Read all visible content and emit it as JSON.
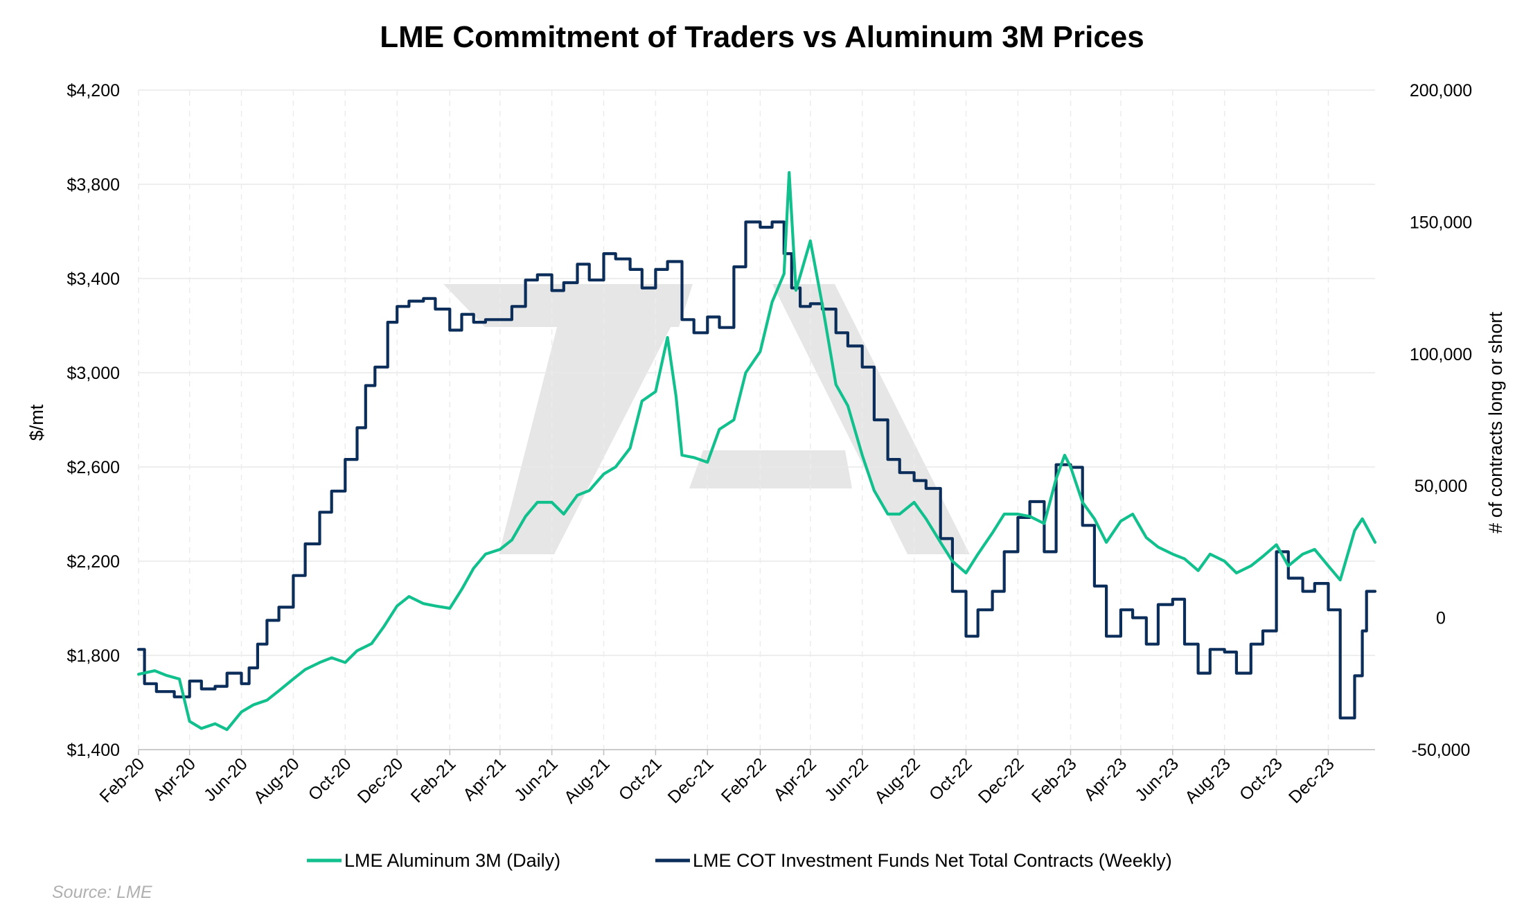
{
  "chart_data": {
    "type": "line",
    "title": "LME Commitment of Traders vs Aluminum 3M Prices",
    "ylabel_left": "$/mt",
    "ylabel_right": "# of contracts long or short",
    "source": "Source: LME",
    "y_left": {
      "min": 1400,
      "max": 4200,
      "ticks": [
        1400,
        1800,
        2200,
        2600,
        3000,
        3400,
        3800,
        4200
      ],
      "tick_labels": [
        "$1,400",
        "$1,800",
        "$2,200",
        "$2,600",
        "$3,000",
        "$3,400",
        "$3,800",
        "$4,200"
      ]
    },
    "y_right": {
      "min": -50000,
      "max": 200000,
      "ticks": [
        -50000,
        0,
        50000,
        100000,
        150000,
        200000
      ],
      "tick_labels": [
        "-50,000",
        "0",
        "50,000",
        "100,000",
        "150,000",
        "200,000"
      ]
    },
    "x_axis": {
      "range": [
        "2020-02-01",
        "2024-01-25"
      ],
      "ticks": [
        "2020-02-01",
        "2020-04-01",
        "2020-06-01",
        "2020-08-01",
        "2020-10-01",
        "2020-12-01",
        "2021-02-01",
        "2021-04-01",
        "2021-06-01",
        "2021-08-01",
        "2021-10-01",
        "2021-12-01",
        "2022-02-01",
        "2022-04-01",
        "2022-06-01",
        "2022-08-01",
        "2022-10-01",
        "2022-12-01",
        "2023-02-01",
        "2023-04-01",
        "2023-06-01",
        "2023-08-01",
        "2023-10-01",
        "2023-12-01"
      ],
      "tick_labels": [
        "Feb-20",
        "Apr-20",
        "Jun-20",
        "Aug-20",
        "Oct-20",
        "Dec-20",
        "Feb-21",
        "Apr-21",
        "Jun-21",
        "Aug-21",
        "Oct-21",
        "Dec-21",
        "Feb-22",
        "Apr-22",
        "Jun-22",
        "Aug-22",
        "Oct-22",
        "Dec-22",
        "Feb-23",
        "Apr-23",
        "Jun-23",
        "Aug-23",
        "Oct-23",
        "Dec-23"
      ]
    },
    "grid": true,
    "legend_position": "bottom",
    "series": [
      {
        "name": "LME Aluminum 3M (Daily)",
        "axis": "left",
        "color": "#12c08e",
        "points": [
          [
            "2020-02-01",
            1720
          ],
          [
            "2020-02-20",
            1735
          ],
          [
            "2020-03-05",
            1715
          ],
          [
            "2020-03-20",
            1700
          ],
          [
            "2020-04-01",
            1520
          ],
          [
            "2020-04-15",
            1490
          ],
          [
            "2020-05-01",
            1510
          ],
          [
            "2020-05-15",
            1485
          ],
          [
            "2020-06-01",
            1560
          ],
          [
            "2020-06-15",
            1590
          ],
          [
            "2020-07-01",
            1610
          ],
          [
            "2020-07-15",
            1650
          ],
          [
            "2020-08-01",
            1700
          ],
          [
            "2020-08-15",
            1740
          ],
          [
            "2020-09-01",
            1770
          ],
          [
            "2020-09-15",
            1790
          ],
          [
            "2020-10-01",
            1770
          ],
          [
            "2020-10-15",
            1820
          ],
          [
            "2020-11-01",
            1850
          ],
          [
            "2020-11-15",
            1920
          ],
          [
            "2020-12-01",
            2010
          ],
          [
            "2020-12-15",
            2050
          ],
          [
            "2021-01-01",
            2020
          ],
          [
            "2021-01-15",
            2010
          ],
          [
            "2021-02-01",
            2000
          ],
          [
            "2021-02-15",
            2080
          ],
          [
            "2021-03-01",
            2170
          ],
          [
            "2021-03-15",
            2230
          ],
          [
            "2021-04-01",
            2250
          ],
          [
            "2021-04-15",
            2290
          ],
          [
            "2021-05-01",
            2390
          ],
          [
            "2021-05-15",
            2450
          ],
          [
            "2021-06-01",
            2450
          ],
          [
            "2021-06-15",
            2400
          ],
          [
            "2021-07-01",
            2480
          ],
          [
            "2021-07-15",
            2500
          ],
          [
            "2021-08-01",
            2570
          ],
          [
            "2021-08-15",
            2600
          ],
          [
            "2021-09-01",
            2680
          ],
          [
            "2021-09-15",
            2880
          ],
          [
            "2021-10-01",
            2920
          ],
          [
            "2021-10-15",
            3150
          ],
          [
            "2021-10-25",
            2900
          ],
          [
            "2021-11-01",
            2650
          ],
          [
            "2021-11-15",
            2640
          ],
          [
            "2021-12-01",
            2620
          ],
          [
            "2021-12-15",
            2760
          ],
          [
            "2022-01-01",
            2800
          ],
          [
            "2022-01-15",
            3000
          ],
          [
            "2022-02-01",
            3090
          ],
          [
            "2022-02-15",
            3300
          ],
          [
            "2022-03-01",
            3420
          ],
          [
            "2022-03-07",
            3850
          ],
          [
            "2022-03-15",
            3350
          ],
          [
            "2022-04-01",
            3560
          ],
          [
            "2022-04-15",
            3290
          ],
          [
            "2022-05-01",
            2950
          ],
          [
            "2022-05-15",
            2860
          ],
          [
            "2022-06-01",
            2650
          ],
          [
            "2022-06-15",
            2500
          ],
          [
            "2022-07-01",
            2400
          ],
          [
            "2022-07-15",
            2400
          ],
          [
            "2022-08-01",
            2450
          ],
          [
            "2022-08-15",
            2380
          ],
          [
            "2022-09-01",
            2280
          ],
          [
            "2022-09-15",
            2200
          ],
          [
            "2022-10-01",
            2150
          ],
          [
            "2022-10-15",
            2230
          ],
          [
            "2022-11-01",
            2320
          ],
          [
            "2022-11-15",
            2400
          ],
          [
            "2022-12-01",
            2400
          ],
          [
            "2022-12-15",
            2390
          ],
          [
            "2023-01-01",
            2360
          ],
          [
            "2023-01-15",
            2550
          ],
          [
            "2023-01-25",
            2650
          ],
          [
            "2023-02-01",
            2600
          ],
          [
            "2023-02-15",
            2450
          ],
          [
            "2023-03-01",
            2380
          ],
          [
            "2023-03-15",
            2280
          ],
          [
            "2023-04-01",
            2370
          ],
          [
            "2023-04-15",
            2400
          ],
          [
            "2023-05-01",
            2300
          ],
          [
            "2023-05-15",
            2260
          ],
          [
            "2023-06-01",
            2230
          ],
          [
            "2023-06-15",
            2210
          ],
          [
            "2023-07-01",
            2160
          ],
          [
            "2023-07-15",
            2230
          ],
          [
            "2023-08-01",
            2200
          ],
          [
            "2023-08-15",
            2150
          ],
          [
            "2023-09-01",
            2180
          ],
          [
            "2023-09-15",
            2220
          ],
          [
            "2023-10-01",
            2270
          ],
          [
            "2023-10-15",
            2180
          ],
          [
            "2023-11-01",
            2230
          ],
          [
            "2023-11-15",
            2250
          ],
          [
            "2023-12-01",
            2180
          ],
          [
            "2023-12-15",
            2120
          ],
          [
            "2024-01-01",
            2330
          ],
          [
            "2024-01-10",
            2380
          ],
          [
            "2024-01-25",
            2280
          ]
        ]
      },
      {
        "name": "LME COT Investment Funds Net Total Contracts (Weekly)",
        "axis": "right",
        "color": "#0b2d5a",
        "step": true,
        "points": [
          [
            "2020-02-01",
            -12000
          ],
          [
            "2020-02-08",
            -25000
          ],
          [
            "2020-02-22",
            -28000
          ],
          [
            "2020-03-14",
            -30000
          ],
          [
            "2020-04-01",
            -24000
          ],
          [
            "2020-04-15",
            -27000
          ],
          [
            "2020-05-01",
            -26000
          ],
          [
            "2020-05-15",
            -21000
          ],
          [
            "2020-06-01",
            -25000
          ],
          [
            "2020-06-10",
            -19000
          ],
          [
            "2020-06-20",
            -10000
          ],
          [
            "2020-07-01",
            -1000
          ],
          [
            "2020-07-15",
            4000
          ],
          [
            "2020-08-01",
            16000
          ],
          [
            "2020-08-15",
            28000
          ],
          [
            "2020-09-01",
            40000
          ],
          [
            "2020-09-15",
            48000
          ],
          [
            "2020-10-01",
            60000
          ],
          [
            "2020-10-15",
            72000
          ],
          [
            "2020-10-25",
            88000
          ],
          [
            "2020-11-05",
            95000
          ],
          [
            "2020-11-20",
            112000
          ],
          [
            "2020-12-01",
            118000
          ],
          [
            "2020-12-15",
            120000
          ],
          [
            "2021-01-01",
            121000
          ],
          [
            "2021-01-15",
            117000
          ],
          [
            "2021-02-01",
            109000
          ],
          [
            "2021-02-15",
            115000
          ],
          [
            "2021-03-01",
            112000
          ],
          [
            "2021-03-15",
            113000
          ],
          [
            "2021-04-01",
            113000
          ],
          [
            "2021-04-15",
            118000
          ],
          [
            "2021-05-01",
            128000
          ],
          [
            "2021-05-15",
            130000
          ],
          [
            "2021-06-01",
            124000
          ],
          [
            "2021-06-15",
            127000
          ],
          [
            "2021-07-01",
            134000
          ],
          [
            "2021-07-15",
            128000
          ],
          [
            "2021-08-01",
            138000
          ],
          [
            "2021-08-15",
            136000
          ],
          [
            "2021-09-01",
            132000
          ],
          [
            "2021-09-15",
            125000
          ],
          [
            "2021-10-01",
            132000
          ],
          [
            "2021-10-15",
            135000
          ],
          [
            "2021-11-01",
            113000
          ],
          [
            "2021-11-15",
            108000
          ],
          [
            "2021-12-01",
            114000
          ],
          [
            "2021-12-15",
            110000
          ],
          [
            "2022-01-01",
            133000
          ],
          [
            "2022-01-15",
            150000
          ],
          [
            "2022-02-01",
            148000
          ],
          [
            "2022-02-15",
            150000
          ],
          [
            "2022-03-01",
            138000
          ],
          [
            "2022-03-10",
            125000
          ],
          [
            "2022-03-20",
            118000
          ],
          [
            "2022-04-01",
            119000
          ],
          [
            "2022-04-15",
            117000
          ],
          [
            "2022-05-01",
            108000
          ],
          [
            "2022-05-15",
            103000
          ],
          [
            "2022-06-01",
            95000
          ],
          [
            "2022-06-15",
            75000
          ],
          [
            "2022-07-01",
            60000
          ],
          [
            "2022-07-15",
            55000
          ],
          [
            "2022-08-01",
            52000
          ],
          [
            "2022-08-15",
            49000
          ],
          [
            "2022-09-01",
            30000
          ],
          [
            "2022-09-15",
            10000
          ],
          [
            "2022-10-01",
            -7000
          ],
          [
            "2022-10-15",
            3000
          ],
          [
            "2022-11-01",
            10000
          ],
          [
            "2022-11-15",
            25000
          ],
          [
            "2022-12-01",
            38000
          ],
          [
            "2022-12-15",
            44000
          ],
          [
            "2023-01-01",
            25000
          ],
          [
            "2023-01-15",
            58000
          ],
          [
            "2023-02-01",
            57000
          ],
          [
            "2023-02-15",
            35000
          ],
          [
            "2023-03-01",
            12000
          ],
          [
            "2023-03-15",
            -7000
          ],
          [
            "2023-04-01",
            3000
          ],
          [
            "2023-04-15",
            0
          ],
          [
            "2023-05-01",
            -10000
          ],
          [
            "2023-05-15",
            5000
          ],
          [
            "2023-06-01",
            7000
          ],
          [
            "2023-06-15",
            -10000
          ],
          [
            "2023-07-01",
            -21000
          ],
          [
            "2023-07-15",
            -12000
          ],
          [
            "2023-08-01",
            -13000
          ],
          [
            "2023-08-15",
            -21000
          ],
          [
            "2023-09-01",
            -10000
          ],
          [
            "2023-09-15",
            -5000
          ],
          [
            "2023-10-01",
            25000
          ],
          [
            "2023-10-15",
            15000
          ],
          [
            "2023-11-01",
            10000
          ],
          [
            "2023-11-15",
            13000
          ],
          [
            "2023-12-01",
            3000
          ],
          [
            "2023-12-15",
            -38000
          ],
          [
            "2024-01-01",
            -22000
          ],
          [
            "2024-01-10",
            -5000
          ],
          [
            "2024-01-15",
            10000
          ],
          [
            "2024-01-25",
            10000
          ]
        ]
      }
    ]
  }
}
